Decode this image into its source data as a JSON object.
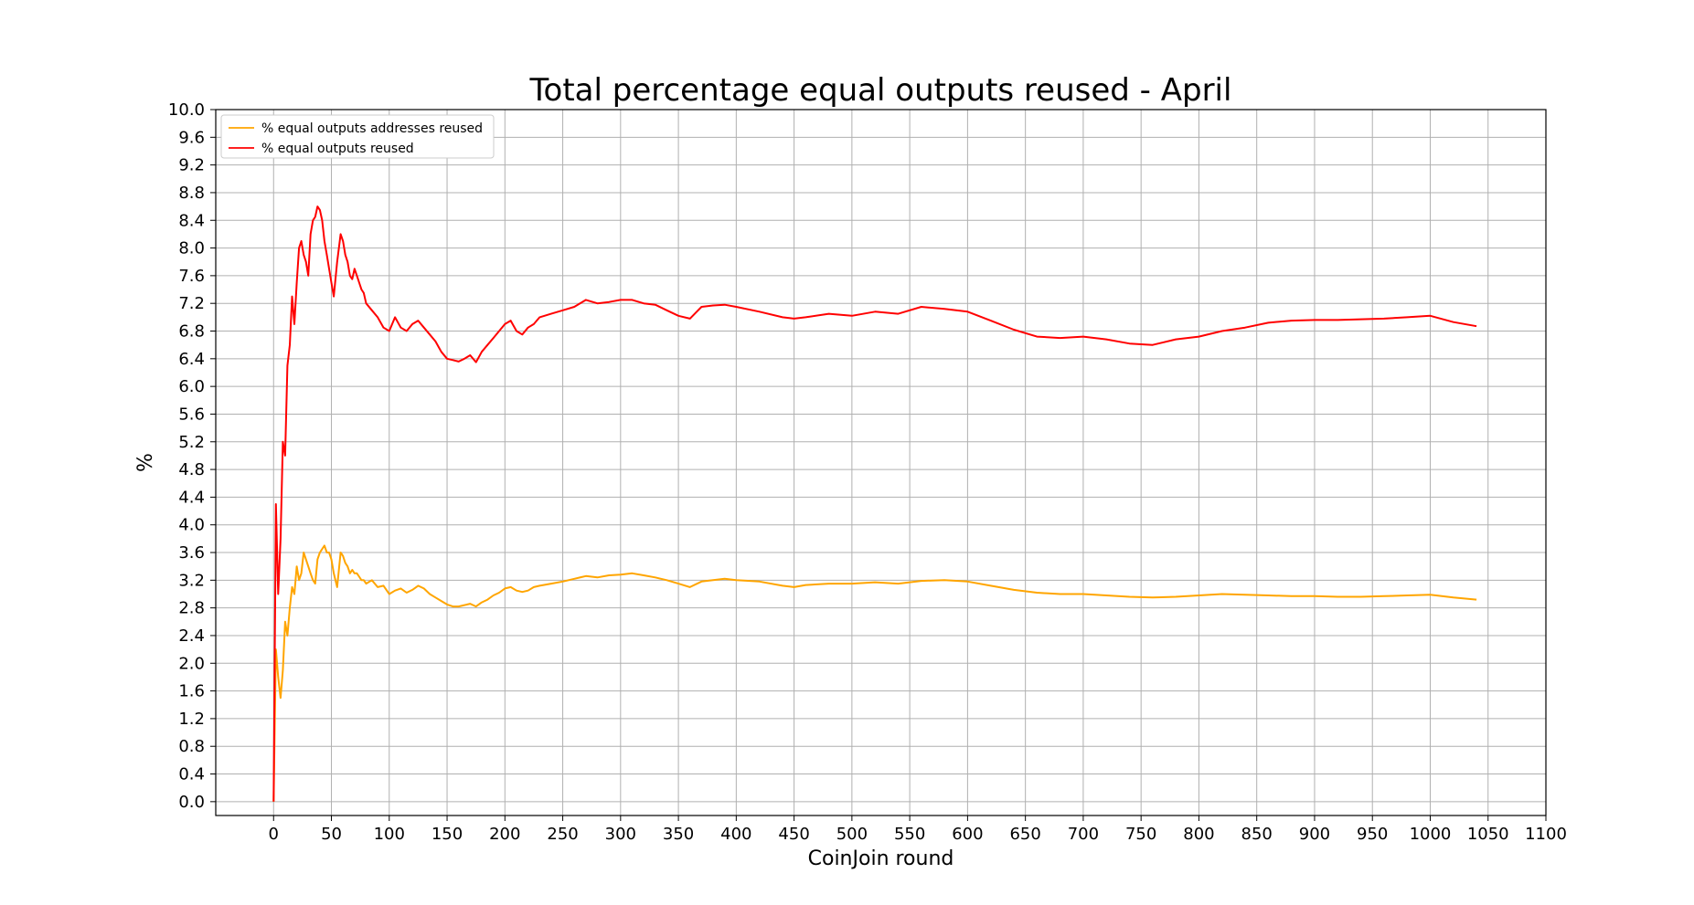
{
  "chart_data": {
    "type": "line",
    "title": "Total percentage equal outputs reused - April",
    "xlabel": "CoinJoin round",
    "ylabel": "%",
    "xlim": [
      -50,
      1100
    ],
    "ylim": [
      -0.2,
      10.0
    ],
    "xticks": [
      0,
      50,
      100,
      150,
      200,
      250,
      300,
      350,
      400,
      450,
      500,
      550,
      600,
      650,
      700,
      750,
      800,
      850,
      900,
      950,
      1000,
      1050,
      1100
    ],
    "yticks": [
      0.0,
      0.4,
      0.8,
      1.2,
      1.6,
      2.0,
      2.4,
      2.8,
      3.2,
      3.6,
      4.0,
      4.4,
      4.8,
      5.2,
      5.6,
      6.0,
      6.4,
      6.8,
      7.2,
      7.6,
      8.0,
      8.4,
      8.8,
      9.2,
      9.6,
      10.0
    ],
    "grid": true,
    "legend_position": "top-left",
    "series": [
      {
        "name": "% equal outputs addresses reused",
        "color": "#ffa500",
        "x": [
          0,
          2,
          4,
          6,
          8,
          10,
          12,
          14,
          16,
          18,
          20,
          22,
          24,
          26,
          28,
          30,
          32,
          34,
          36,
          38,
          40,
          42,
          44,
          46,
          48,
          50,
          52,
          55,
          58,
          60,
          62,
          64,
          66,
          68,
          70,
          72,
          74,
          76,
          78,
          80,
          85,
          90,
          95,
          100,
          105,
          110,
          115,
          120,
          125,
          130,
          135,
          140,
          145,
          150,
          155,
          160,
          165,
          170,
          175,
          180,
          185,
          190,
          195,
          200,
          205,
          210,
          215,
          220,
          225,
          230,
          240,
          250,
          260,
          270,
          280,
          290,
          300,
          310,
          320,
          330,
          340,
          350,
          360,
          370,
          380,
          390,
          400,
          420,
          440,
          450,
          460,
          480,
          500,
          520,
          540,
          560,
          580,
          600,
          620,
          640,
          660,
          680,
          700,
          720,
          740,
          760,
          780,
          800,
          820,
          840,
          860,
          880,
          900,
          920,
          940,
          960,
          980,
          1000,
          1020,
          1040
        ],
        "y": [
          0.0,
          2.2,
          1.8,
          1.5,
          1.9,
          2.6,
          2.4,
          2.8,
          3.1,
          3.0,
          3.4,
          3.2,
          3.3,
          3.6,
          3.5,
          3.4,
          3.3,
          3.2,
          3.15,
          3.5,
          3.6,
          3.65,
          3.7,
          3.6,
          3.6,
          3.5,
          3.3,
          3.1,
          3.6,
          3.55,
          3.45,
          3.4,
          3.3,
          3.35,
          3.3,
          3.3,
          3.25,
          3.2,
          3.2,
          3.15,
          3.2,
          3.1,
          3.12,
          3.0,
          3.05,
          3.08,
          3.02,
          3.06,
          3.12,
          3.08,
          3.0,
          2.95,
          2.9,
          2.85,
          2.82,
          2.82,
          2.84,
          2.86,
          2.82,
          2.88,
          2.92,
          2.98,
          3.02,
          3.08,
          3.1,
          3.05,
          3.03,
          3.05,
          3.1,
          3.12,
          3.15,
          3.18,
          3.22,
          3.26,
          3.24,
          3.27,
          3.28,
          3.3,
          3.27,
          3.24,
          3.2,
          3.15,
          3.1,
          3.18,
          3.2,
          3.22,
          3.2,
          3.18,
          3.12,
          3.1,
          3.13,
          3.15,
          3.15,
          3.17,
          3.15,
          3.19,
          3.2,
          3.18,
          3.12,
          3.06,
          3.02,
          3.0,
          3.0,
          2.98,
          2.96,
          2.95,
          2.96,
          2.98,
          3.0,
          2.99,
          2.98,
          2.97,
          2.97,
          2.96,
          2.96,
          2.97,
          2.98,
          2.99,
          2.95,
          2.92
        ]
      },
      {
        "name": "% equal outputs reused",
        "color": "#ff0000",
        "x": [
          0,
          2,
          4,
          6,
          8,
          10,
          12,
          14,
          16,
          18,
          20,
          22,
          24,
          26,
          28,
          30,
          32,
          34,
          36,
          38,
          40,
          42,
          44,
          46,
          48,
          50,
          52,
          55,
          58,
          60,
          62,
          64,
          66,
          68,
          70,
          72,
          74,
          76,
          78,
          80,
          85,
          90,
          95,
          100,
          105,
          110,
          115,
          120,
          125,
          130,
          135,
          140,
          145,
          150,
          155,
          160,
          165,
          170,
          175,
          180,
          185,
          190,
          195,
          200,
          205,
          210,
          215,
          220,
          225,
          230,
          240,
          250,
          260,
          270,
          280,
          290,
          300,
          310,
          320,
          330,
          340,
          350,
          360,
          370,
          380,
          390,
          400,
          420,
          440,
          450,
          460,
          480,
          500,
          520,
          540,
          560,
          580,
          600,
          620,
          640,
          660,
          680,
          700,
          720,
          740,
          760,
          780,
          800,
          820,
          840,
          860,
          880,
          900,
          920,
          940,
          960,
          980,
          1000,
          1020,
          1040
        ],
        "y": [
          0.0,
          4.3,
          3.0,
          3.8,
          5.2,
          5.0,
          6.3,
          6.6,
          7.3,
          6.9,
          7.5,
          8.0,
          8.1,
          7.9,
          7.8,
          7.6,
          8.2,
          8.4,
          8.45,
          8.6,
          8.55,
          8.4,
          8.1,
          7.9,
          7.7,
          7.5,
          7.3,
          7.8,
          8.2,
          8.1,
          7.9,
          7.8,
          7.6,
          7.55,
          7.7,
          7.6,
          7.5,
          7.4,
          7.35,
          7.2,
          7.1,
          7.0,
          6.85,
          6.8,
          7.0,
          6.85,
          6.8,
          6.9,
          6.95,
          6.85,
          6.75,
          6.65,
          6.5,
          6.4,
          6.38,
          6.36,
          6.4,
          6.45,
          6.35,
          6.5,
          6.6,
          6.7,
          6.8,
          6.9,
          6.95,
          6.8,
          6.75,
          6.85,
          6.9,
          7.0,
          7.05,
          7.1,
          7.15,
          7.25,
          7.2,
          7.22,
          7.25,
          7.25,
          7.2,
          7.18,
          7.1,
          7.02,
          6.98,
          7.15,
          7.17,
          7.18,
          7.15,
          7.08,
          7.0,
          6.98,
          7.0,
          7.05,
          7.02,
          7.08,
          7.05,
          7.15,
          7.12,
          7.08,
          6.95,
          6.82,
          6.72,
          6.7,
          6.72,
          6.68,
          6.62,
          6.6,
          6.68,
          6.72,
          6.8,
          6.85,
          6.92,
          6.95,
          6.96,
          6.96,
          6.97,
          6.98,
          7.0,
          7.02,
          6.93,
          6.87
        ]
      }
    ]
  }
}
